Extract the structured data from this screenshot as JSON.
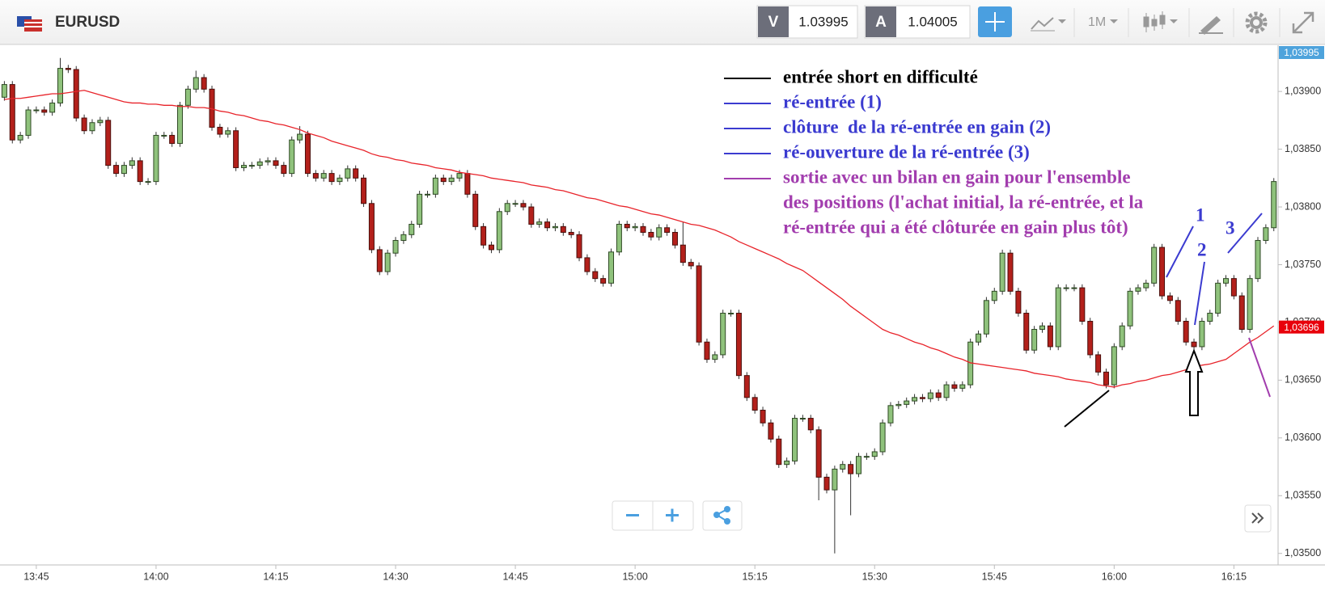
{
  "toolbar": {
    "symbol": "EURUSD",
    "sell_label": "V",
    "sell_price": "1.03995",
    "buy_label": "A",
    "buy_price": "1.04005",
    "timeframe": "1M"
  },
  "chart_data": {
    "type": "candlestick",
    "categories": [
      null,
      null,
      null,
      null,
      "13:45",
      null,
      null,
      null,
      null,
      null,
      null,
      null,
      null,
      null,
      null,
      null,
      null,
      null,
      null,
      "14:00",
      null,
      null,
      null,
      null,
      null,
      null,
      null,
      null,
      null,
      null,
      null,
      null,
      null,
      null,
      "14:15",
      null,
      null,
      null,
      null,
      null,
      null,
      null,
      null,
      null,
      null,
      null,
      null,
      null,
      null,
      "14:30",
      null,
      null,
      null,
      null,
      null,
      null,
      null,
      null,
      null,
      null,
      null,
      null,
      null,
      null,
      "14:45",
      null,
      null,
      null,
      null,
      null,
      null,
      null,
      null,
      null,
      null,
      null,
      null,
      null,
      null,
      "15:00",
      null,
      null,
      null,
      null,
      null,
      null,
      null,
      null,
      null,
      null,
      null,
      null,
      null,
      null,
      "15:15",
      null,
      null,
      null,
      null,
      null,
      null,
      null,
      null,
      null,
      null,
      null,
      null,
      null,
      null,
      "15:30",
      null,
      null,
      null,
      null,
      null,
      null,
      null,
      null,
      null,
      null,
      null,
      null,
      null,
      null,
      "15:45",
      null,
      null,
      null,
      null,
      null,
      null,
      null,
      null,
      null,
      null,
      null,
      null,
      null,
      null,
      "16:00",
      null,
      null,
      null,
      null,
      null,
      null,
      null,
      null,
      null,
      null,
      null,
      null,
      null,
      null,
      "16:15",
      null,
      null,
      null,
      null,
      null
    ],
    "open": [
      1.03895,
      1.03906,
      1.03858,
      1.03862,
      1.03884,
      1.03884,
      1.03882,
      1.0389,
      1.0392,
      1.03919,
      1.03877,
      1.03866,
      1.03873,
      1.03875,
      1.03836,
      1.03829,
      1.03836,
      1.0384,
      1.03822,
      1.03822,
      1.03862,
      1.03862,
      1.03855,
      1.03888,
      1.03902,
      1.03912,
      1.03902,
      1.03869,
      1.03863,
      1.03866,
      1.03834,
      1.03836,
      1.03836,
      1.03839,
      1.0384,
      1.03836,
      1.03829,
      1.03858,
      1.03863,
      1.03829,
      1.03825,
      1.03829,
      1.03822,
      1.03825,
      1.03833,
      1.03825,
      1.03803,
      1.03763,
      1.03744,
      1.0376,
      1.03771,
      1.03776,
      1.03785,
      1.03811,
      1.03811,
      1.03825,
      1.03822,
      1.03825,
      1.03829,
      1.03811,
      1.03783,
      1.03767,
      1.03763,
      1.03796,
      1.03803,
      1.03803,
      1.038,
      1.03785,
      1.03787,
      1.03782,
      1.03783,
      1.03778,
      1.03776,
      1.03756,
      1.03744,
      1.03738,
      1.03734,
      1.03761,
      1.03785,
      1.03782,
      1.03783,
      1.03778,
      1.03774,
      1.03782,
      1.03778,
      1.03767,
      1.03752,
      1.03749,
      1.03683,
      1.03668,
      1.03672,
      1.03708,
      1.03708,
      1.03654,
      1.03635,
      1.03624,
      1.03613,
      1.03599,
      1.03577,
      1.0358,
      1.03617,
      1.03617,
      1.03607,
      1.03566,
      1.03555,
      1.03573,
      1.03577,
      1.03569,
      1.03584,
      1.03584,
      1.03588,
      1.03613,
      1.03628,
      1.03629,
      1.03632,
      1.03635,
      1.03634,
      1.03639,
      1.03635,
      1.03646,
      1.03643,
      1.03646,
      1.03683,
      1.0369,
      1.03719,
      1.03727,
      1.0376,
      1.03727,
      1.03708,
      1.03676,
      1.03694,
      1.03697,
      1.03679,
      1.0373,
      1.0373,
      1.0373,
      1.03701,
      1.03672,
      1.03657,
      1.03646,
      1.03679,
      1.03697,
      1.03727,
      1.0373,
      1.03734,
      1.03765,
      1.03723,
      1.03719,
      1.03701,
      1.03683,
      1.03679,
      1.03701,
      1.03708,
      1.03734,
      1.03738,
      1.03723,
      1.03694,
      1.03738,
      1.03771,
      1.03782
    ],
    "high": [
      1.03909,
      1.03909,
      1.03865,
      1.03887,
      1.03887,
      1.03887,
      1.03893,
      1.03929,
      1.03923,
      1.03922,
      1.0388,
      1.03876,
      1.03878,
      1.03878,
      1.03839,
      1.03839,
      1.03843,
      1.03843,
      1.03825,
      1.03865,
      1.03865,
      1.03865,
      1.03891,
      1.03905,
      1.03918,
      1.03915,
      1.03905,
      1.03872,
      1.03869,
      1.03869,
      1.03839,
      1.03839,
      1.03842,
      1.03843,
      1.03843,
      1.03839,
      1.03861,
      1.0387,
      1.03866,
      1.03832,
      1.03832,
      1.03832,
      1.03828,
      1.03836,
      1.03836,
      1.03828,
      1.03806,
      1.03766,
      1.03763,
      1.03774,
      1.03779,
      1.03788,
      1.03814,
      1.03814,
      1.03828,
      1.03828,
      1.03828,
      1.03832,
      1.03832,
      1.03814,
      1.03786,
      1.0377,
      1.03799,
      1.03806,
      1.03806,
      1.03806,
      1.03803,
      1.0379,
      1.0379,
      1.03786,
      1.03786,
      1.03781,
      1.03779,
      1.03759,
      1.03747,
      1.03741,
      1.03764,
      1.03788,
      1.03788,
      1.03786,
      1.03786,
      1.03781,
      1.03785,
      1.03785,
      1.03781,
      1.03787,
      1.03755,
      1.03752,
      1.03686,
      1.03675,
      1.03711,
      1.03711,
      1.03711,
      1.03657,
      1.03638,
      1.03627,
      1.03616,
      1.03602,
      1.03583,
      1.0362,
      1.0362,
      1.0362,
      1.0361,
      1.03569,
      1.03576,
      1.0358,
      1.0358,
      1.03587,
      1.03587,
      1.03591,
      1.03616,
      1.03631,
      1.03632,
      1.03635,
      1.03638,
      1.03638,
      1.03642,
      1.03642,
      1.03649,
      1.03649,
      1.03649,
      1.03686,
      1.03693,
      1.03722,
      1.0373,
      1.03763,
      1.03763,
      1.0373,
      1.03711,
      1.03697,
      1.037,
      1.037,
      1.03733,
      1.03733,
      1.03733,
      1.03733,
      1.03704,
      1.03675,
      1.0366,
      1.03682,
      1.037,
      1.0373,
      1.03733,
      1.03737,
      1.03768,
      1.03768,
      1.03726,
      1.03722,
      1.03704,
      1.03686,
      1.03704,
      1.03711,
      1.03737,
      1.03741,
      1.03741,
      1.03726,
      1.03741,
      1.03774,
      1.03785,
      1.03825
    ],
    "low": [
      1.03892,
      1.03855,
      1.03855,
      1.03859,
      1.03881,
      1.03879,
      1.03879,
      1.03887,
      1.03916,
      1.03874,
      1.03863,
      1.03863,
      1.0387,
      1.03833,
      1.03826,
      1.03826,
      1.03833,
      1.03819,
      1.03819,
      1.03819,
      1.03859,
      1.03852,
      1.03852,
      1.03885,
      1.03899,
      1.03899,
      1.03866,
      1.0386,
      1.0386,
      1.03831,
      1.03831,
      1.03833,
      1.03833,
      1.03836,
      1.03833,
      1.03826,
      1.03826,
      1.03855,
      1.03826,
      1.03822,
      1.03822,
      1.03819,
      1.03819,
      1.03822,
      1.03822,
      1.038,
      1.0376,
      1.03741,
      1.03741,
      1.03757,
      1.03768,
      1.03773,
      1.03782,
      1.03808,
      1.03808,
      1.03819,
      1.03819,
      1.03822,
      1.03808,
      1.0378,
      1.03764,
      1.0376,
      1.0376,
      1.03793,
      1.038,
      1.03797,
      1.03782,
      1.03782,
      1.03779,
      1.03779,
      1.03775,
      1.03773,
      1.03753,
      1.03741,
      1.03735,
      1.03731,
      1.03731,
      1.03758,
      1.03779,
      1.03779,
      1.03775,
      1.03771,
      1.03771,
      1.03775,
      1.03764,
      1.03749,
      1.03746,
      1.0368,
      1.03665,
      1.03665,
      1.03669,
      1.03705,
      1.03651,
      1.03632,
      1.03621,
      1.0361,
      1.03596,
      1.03574,
      1.03574,
      1.03577,
      1.03614,
      1.03604,
      1.03546,
      1.03552,
      1.035,
      1.0357,
      1.03533,
      1.03566,
      1.03581,
      1.03581,
      1.03585,
      1.0361,
      1.03625,
      1.03626,
      1.03629,
      1.03631,
      1.03631,
      1.03632,
      1.03632,
      1.0364,
      1.0364,
      1.03643,
      1.0368,
      1.03687,
      1.03716,
      1.03724,
      1.03724,
      1.03705,
      1.03673,
      1.03673,
      1.03691,
      1.03676,
      1.03676,
      1.03727,
      1.03727,
      1.03698,
      1.03669,
      1.03654,
      1.03643,
      1.03643,
      1.03676,
      1.03694,
      1.03724,
      1.03727,
      1.03731,
      1.0372,
      1.03716,
      1.03698,
      1.0368,
      1.03676,
      1.03676,
      1.03698,
      1.03705,
      1.03731,
      1.0372,
      1.03691,
      1.03691,
      1.03735,
      1.03768,
      1.03779
    ],
    "close": [
      1.03906,
      1.03858,
      1.03862,
      1.03884,
      1.03884,
      1.03882,
      1.0389,
      1.0392,
      1.03919,
      1.03877,
      1.03866,
      1.03873,
      1.03875,
      1.03836,
      1.03829,
      1.03836,
      1.0384,
      1.03822,
      1.03822,
      1.03862,
      1.03862,
      1.03855,
      1.03888,
      1.03902,
      1.03912,
      1.03902,
      1.03869,
      1.03863,
      1.03866,
      1.03834,
      1.03836,
      1.03836,
      1.03839,
      1.0384,
      1.03836,
      1.03829,
      1.03858,
      1.03863,
      1.03829,
      1.03825,
      1.03829,
      1.03822,
      1.03825,
      1.03833,
      1.03825,
      1.03803,
      1.03763,
      1.03744,
      1.0376,
      1.03771,
      1.03776,
      1.03785,
      1.03811,
      1.03811,
      1.03825,
      1.03822,
      1.03825,
      1.03829,
      1.03811,
      1.03783,
      1.03767,
      1.03763,
      1.03796,
      1.03803,
      1.03803,
      1.038,
      1.03785,
      1.03787,
      1.03782,
      1.03783,
      1.03778,
      1.03776,
      1.03756,
      1.03744,
      1.03738,
      1.03734,
      1.03761,
      1.03785,
      1.03782,
      1.03783,
      1.03778,
      1.03774,
      1.03782,
      1.03778,
      1.03767,
      1.03752,
      1.03749,
      1.03683,
      1.03668,
      1.03672,
      1.03708,
      1.03708,
      1.03654,
      1.03635,
      1.03624,
      1.03613,
      1.03599,
      1.03577,
      1.0358,
      1.03617,
      1.03617,
      1.03607,
      1.03566,
      1.03555,
      1.03573,
      1.03577,
      1.03569,
      1.03584,
      1.03584,
      1.03588,
      1.03613,
      1.03628,
      1.03629,
      1.03632,
      1.03635,
      1.03634,
      1.03639,
      1.03635,
      1.03646,
      1.03643,
      1.03646,
      1.03683,
      1.0369,
      1.03719,
      1.03727,
      1.0376,
      1.03727,
      1.03708,
      1.03676,
      1.03694,
      1.03697,
      1.03679,
      1.0373,
      1.0373,
      1.0373,
      1.03701,
      1.03672,
      1.03657,
      1.03646,
      1.03679,
      1.03697,
      1.03727,
      1.0373,
      1.03734,
      1.03765,
      1.03723,
      1.03719,
      1.03701,
      1.03683,
      1.03679,
      1.03701,
      1.03708,
      1.03734,
      1.03738,
      1.03723,
      1.03694,
      1.03738,
      1.03771,
      1.03782,
      1.03822
    ],
    "up_color": "#8fc27c",
    "down_color": "#b3201b",
    "moving_average": {
      "color": "#e8232a",
      "values": [
        1.03893,
        1.03894,
        1.03894,
        1.03895,
        1.03896,
        1.03897,
        1.03898,
        1.03898,
        1.03899,
        1.039,
        1.03901,
        1.03899,
        1.03897,
        1.03895,
        1.03893,
        1.03891,
        1.0389,
        1.0389,
        1.03889,
        1.03889,
        1.03888,
        1.03888,
        1.03887,
        1.03887,
        1.03886,
        1.03886,
        1.03885,
        1.03883,
        1.03882,
        1.0388,
        1.03879,
        1.03877,
        1.03875,
        1.03874,
        1.03872,
        1.03871,
        1.03869,
        1.03867,
        1.03864,
        1.03862,
        1.0386,
        1.03857,
        1.03855,
        1.03853,
        1.03851,
        1.03849,
        1.03846,
        1.03844,
        1.03843,
        1.03841,
        1.0384,
        1.03838,
        1.03837,
        1.03836,
        1.03834,
        1.03833,
        1.03832,
        1.0383,
        1.03829,
        1.03828,
        1.03827,
        1.03825,
        1.03824,
        1.03823,
        1.03822,
        1.03821,
        1.03819,
        1.03818,
        1.03817,
        1.03815,
        1.03814,
        1.03812,
        1.0381,
        1.03808,
        1.03807,
        1.03805,
        1.03803,
        1.03801,
        1.038,
        1.03798,
        1.03796,
        1.03794,
        1.03793,
        1.03791,
        1.03789,
        1.03787,
        1.03785,
        1.03784,
        1.03782,
        1.0378,
        1.03777,
        1.03774,
        1.0377,
        1.03767,
        1.03764,
        1.03761,
        1.03758,
        1.03755,
        1.03751,
        1.03748,
        1.03745,
        1.0374,
        1.03735,
        1.0373,
        1.03725,
        1.0372,
        1.03714,
        1.03709,
        1.03704,
        1.03699,
        1.03694,
        1.03691,
        1.03689,
        1.03686,
        1.03683,
        1.03681,
        1.03678,
        1.03676,
        1.03673,
        1.0367,
        1.03668,
        1.03665,
        1.03664,
        1.03663,
        1.03662,
        1.03661,
        1.0366,
        1.03659,
        1.03658,
        1.03656,
        1.03655,
        1.03654,
        1.03653,
        1.03651,
        1.0365,
        1.03649,
        1.03648,
        1.03646,
        1.03645,
        1.03644,
        1.03646,
        1.03647,
        1.03649,
        1.0365,
        1.03652,
        1.03654,
        1.03655,
        1.03657,
        1.03659,
        1.03661,
        1.03663,
        1.03664,
        1.03666,
        1.03668,
        1.03673,
        1.03678,
        1.03683,
        1.03687,
        1.03692,
        1.03697
      ]
    },
    "ylim": [
      1.0349,
      1.0394
    ],
    "yticks": [
      {
        "value": 1.035,
        "label": "1,03500"
      },
      {
        "value": 1.0355,
        "label": "1,03550"
      },
      {
        "value": 1.036,
        "label": "1,03600"
      },
      {
        "value": 1.0365,
        "label": "1,03650"
      },
      {
        "value": 1.037,
        "label": "1,03700"
      },
      {
        "value": 1.0375,
        "label": "1,03750"
      },
      {
        "value": 1.038,
        "label": "1,03800"
      },
      {
        "value": 1.0385,
        "label": "1,03850"
      },
      {
        "value": 1.039,
        "label": "1,03900"
      }
    ],
    "price_tags": [
      {
        "value": 1.03995,
        "label": "1,03995",
        "color": "#4ea3dc"
      },
      {
        "value": 1.03696,
        "label": "1,03696",
        "color": "#e8000b"
      }
    ],
    "annotations": [
      {
        "text": "entrée short en difficulté",
        "color": "#000000"
      },
      {
        "text": "ré-entrée (1)",
        "color": "#3b3bd0"
      },
      {
        "text": "clôture  de la ré-entrée en gain (2)",
        "color": "#3b3bd0"
      },
      {
        "text": "ré-ouverture de la ré-entrée (3)",
        "color": "#3b3bd0"
      },
      {
        "lines": [
          "sortie avec un bilan en gain pour l'ensemble",
          "des positions (l'achat initial, la ré-entrée, et la",
          "ré-entrée qui a été clôturée en gain plus tôt)"
        ],
        "color": "#a23dae"
      }
    ],
    "drawing_labels": [
      "1",
      "2",
      "3"
    ]
  }
}
